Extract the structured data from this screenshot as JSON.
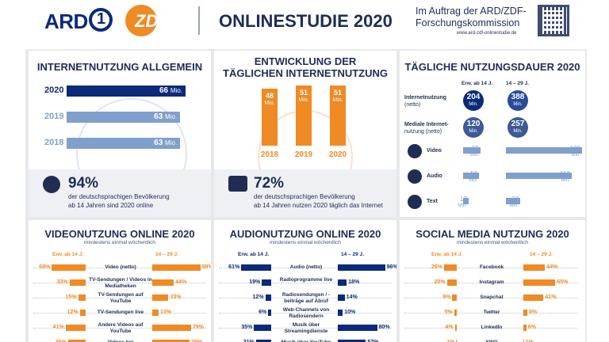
{
  "header": {
    "ard_logo": "ARD",
    "ard_one": "1",
    "zdf_logo": "ZDF",
    "title": "ONLINESTUDIE 2020",
    "commission": "Im Auftrag der ARD/ZDF-Forschungskommission",
    "url": "www.ard-zdf-onlinestudie.de"
  },
  "colors": {
    "navy": "#1f2d55",
    "orange": "#f08a24",
    "lightblue": "#7f9fcc",
    "darkblue": "#0b2a7a"
  },
  "internet_general": {
    "title": "INTERNETNUTZUNG ALLGEMEIN",
    "unit": "Mio.",
    "rows": [
      {
        "year": "2020",
        "value": 66,
        "value_label": "66"
      },
      {
        "year": "2019",
        "value": 63,
        "value_label": "63"
      },
      {
        "year": "2018",
        "value": 63,
        "value_label": "63"
      }
    ],
    "pct": "94%",
    "desc_1": "der deutschsprachigen Bevölkerung",
    "desc_2": "ab 14 Jahren sind 2020 online"
  },
  "daily_development": {
    "title_1": "ENTWICKLUNG DER",
    "title_2": "TÄGLICHEN INTERNETNUTZUNG",
    "unit": "Mio.",
    "bars": [
      {
        "year": "2018",
        "value": 48,
        "value_label": "48"
      },
      {
        "year": "2019",
        "value": 51,
        "value_label": "51"
      },
      {
        "year": "2020",
        "value": 51,
        "value_label": "51"
      }
    ],
    "pct": "72%",
    "desc_1": "der deutschsprachigen Bevölkerung",
    "desc_2": "ab 14 Jahren nutzen 2020 täglich das Internet"
  },
  "daily_duration": {
    "title": "TÄGLICHE NUTZUNGSDAUER 2020",
    "col_adult": "Erw. ab 14 J.",
    "col_young": "14 – 29 J.",
    "unit": "Min.",
    "circles": [
      {
        "label_1": "Internetnutzung",
        "label_2": "(netto)",
        "adult": "204",
        "young": "388"
      },
      {
        "label_1": "Mediale Internet-",
        "label_2": "nutzung (netto)",
        "adult": "120",
        "young": "257"
      }
    ],
    "bars": [
      {
        "label": "Video",
        "icon": "video-icon",
        "adult": 55,
        "young": 130
      },
      {
        "label": "Audio",
        "icon": "headphones-icon",
        "adult": 51,
        "young": 112
      },
      {
        "label": "Text",
        "icon": "document-icon",
        "adult": 17,
        "young": 24
      }
    ]
  },
  "video_usage": {
    "title": "VIDEONUTZUNG ONLINE 2020",
    "subtitle": "mindestens einmal wöchentlich",
    "col_adult": "Erw. ab 14 J.",
    "col_young": "14 – 29 J.",
    "rows": [
      {
        "label": "Video (netto)",
        "adult": 69,
        "young": 98
      },
      {
        "label": "TV-Sendungen / Videos in Mediatheken",
        "adult": 33,
        "young": 44
      },
      {
        "label": "TV-Sendungen auf YouTube",
        "adult": 15,
        "young": 33
      },
      {
        "label": "TV-Sendungen live",
        "adult": 12,
        "young": 13
      },
      {
        "label": "Andere Videos auf YouTube",
        "adult": 41,
        "young": 79
      },
      {
        "label": "Videos bei",
        "adult": 36,
        "young": 76
      }
    ]
  },
  "audio_usage": {
    "title": "AUDIONUTZUNG ONLINE 2020",
    "subtitle": "mindestens einmal wöchentlich",
    "col_adult": "Erw. ab 14 J.",
    "col_young": "14 – 29 J.",
    "rows": [
      {
        "label": "Audio (netto)",
        "adult": 61,
        "young": 96
      },
      {
        "label": "Radioprogramme live",
        "adult": 19,
        "young": 18
      },
      {
        "label": "Radiosendungen / -beiträge auf Abruf",
        "adult": 12,
        "young": 14
      },
      {
        "label": "Web-Channels von Radiosendern",
        "adult": 6,
        "young": 10
      },
      {
        "label": "Musik über Streamingdienste",
        "adult": 35,
        "young": 80
      },
      {
        "label": "Musik über YouTube",
        "adult": 31,
        "young": 57
      }
    ]
  },
  "social_media": {
    "title": "SOCIAL MEDIA NUTZUNG 2020",
    "subtitle": "mindestens einmal wöchentlich",
    "col_adult": "Erw. ab 14 J.",
    "col_young": "14 – 29 J.",
    "rows": [
      {
        "label": "Facebook",
        "adult": 26,
        "young": 44
      },
      {
        "label": "Instagram",
        "adult": 20,
        "young": 65
      },
      {
        "label": "Snapchat",
        "adult": 9,
        "young": 41
      },
      {
        "label": "Twitter",
        "adult": 5,
        "young": 8
      },
      {
        "label": "LinkedIn",
        "adult": 4,
        "young": 6
      },
      {
        "label": "XING",
        "adult": 1,
        "young": 1
      }
    ]
  }
}
